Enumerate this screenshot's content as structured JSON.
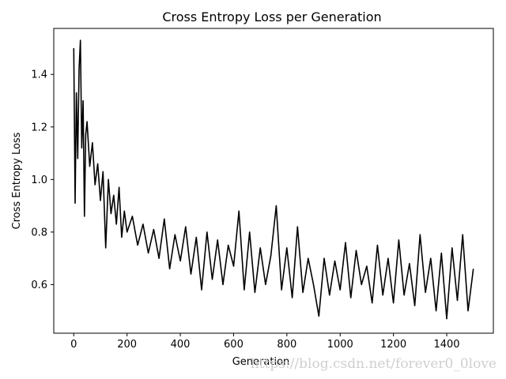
{
  "chart_data": {
    "type": "line",
    "title": "Cross Entropy Loss per Generation",
    "xlabel": "Generation",
    "ylabel": "Cross Entropy Loss",
    "xlim": [
      -75,
      1575
    ],
    "ylim": [
      0.415,
      1.575
    ],
    "xticks": [
      0,
      200,
      400,
      600,
      800,
      1000,
      1200,
      1400
    ],
    "yticks": [
      0.6,
      0.8,
      1.0,
      1.2,
      1.4
    ],
    "ytick_labels": [
      "0.6",
      "0.8",
      "1.0",
      "1.2",
      "1.4"
    ],
    "grid": false,
    "series": [
      {
        "color": "#000000",
        "x": [
          0,
          5,
          10,
          15,
          20,
          25,
          30,
          35,
          40,
          45,
          50,
          60,
          70,
          80,
          90,
          100,
          110,
          120,
          130,
          140,
          150,
          160,
          170,
          180,
          190,
          200,
          220,
          240,
          260,
          280,
          300,
          320,
          340,
          360,
          380,
          400,
          420,
          440,
          460,
          480,
          500,
          520,
          540,
          560,
          580,
          600,
          620,
          640,
          660,
          680,
          700,
          720,
          740,
          760,
          780,
          800,
          820,
          840,
          860,
          880,
          900,
          920,
          940,
          960,
          980,
          1000,
          1020,
          1040,
          1060,
          1080,
          1100,
          1120,
          1140,
          1160,
          1180,
          1200,
          1220,
          1240,
          1260,
          1280,
          1300,
          1320,
          1340,
          1360,
          1380,
          1400,
          1420,
          1440,
          1460,
          1480,
          1500
        ],
        "y": [
          1.5,
          0.91,
          1.33,
          1.08,
          1.42,
          1.53,
          1.12,
          1.3,
          0.86,
          1.17,
          1.22,
          1.05,
          1.14,
          0.98,
          1.06,
          0.92,
          1.03,
          0.74,
          1.0,
          0.87,
          0.94,
          0.83,
          0.97,
          0.78,
          0.88,
          0.8,
          0.86,
          0.75,
          0.83,
          0.72,
          0.81,
          0.7,
          0.85,
          0.66,
          0.79,
          0.69,
          0.82,
          0.64,
          0.78,
          0.58,
          0.8,
          0.62,
          0.77,
          0.6,
          0.75,
          0.67,
          0.88,
          0.58,
          0.8,
          0.57,
          0.74,
          0.6,
          0.71,
          0.9,
          0.58,
          0.74,
          0.55,
          0.82,
          0.57,
          0.7,
          0.6,
          0.48,
          0.7,
          0.56,
          0.69,
          0.58,
          0.76,
          0.55,
          0.73,
          0.6,
          0.67,
          0.53,
          0.75,
          0.56,
          0.7,
          0.53,
          0.77,
          0.56,
          0.68,
          0.52,
          0.79,
          0.57,
          0.7,
          0.5,
          0.72,
          0.47,
          0.74,
          0.54,
          0.79,
          0.5,
          0.66
        ]
      }
    ]
  },
  "watermark": "https://blog.csdn.net/forever0_0love"
}
